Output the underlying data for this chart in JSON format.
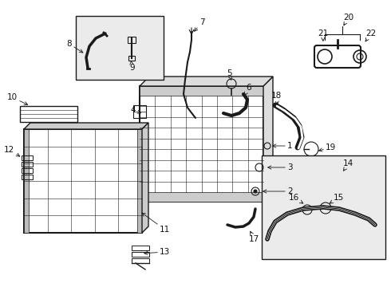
{
  "background_color": "#ffffff",
  "fig_width": 4.9,
  "fig_height": 3.6,
  "dpi": 100,
  "line_color": "#1a1a1a",
  "label_fontsize": 7.5,
  "parts_bg": "#e8e8e8"
}
